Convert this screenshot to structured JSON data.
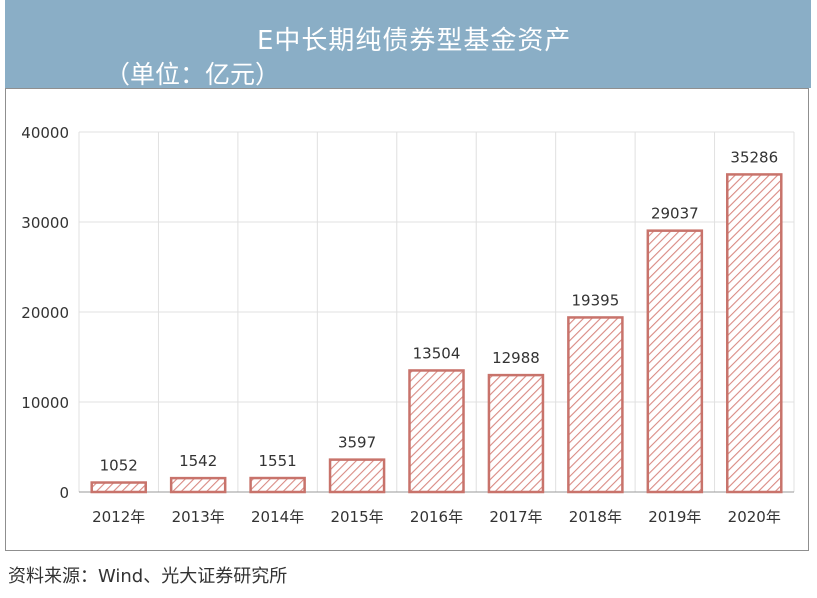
{
  "header": {
    "title": "E中长期纯债券型基金资产",
    "subtitle": "（单位：亿元）"
  },
  "footer": {
    "source": "资料来源：Wind、光大证券研究所"
  },
  "colors": {
    "banner": "#8aaec6",
    "bar_stroke": "#c8736b",
    "bar_hatch": "#d98a83",
    "grid": "#e0e0e0",
    "axis": "#999999",
    "text": "#333333"
  },
  "chart_data": {
    "type": "bar",
    "categories": [
      "2012年",
      "2013年",
      "2014年",
      "2015年",
      "2016年",
      "2017年",
      "2018年",
      "2019年",
      "2020年"
    ],
    "values": [
      1052,
      1542,
      1551,
      3597,
      13504,
      12988,
      19395,
      29037,
      35286
    ],
    "data_labels": [
      "1052",
      "1542",
      "1551",
      "3597",
      "13504",
      "12988",
      "19395",
      "29037",
      "35286"
    ],
    "yticks": [
      0,
      10000,
      20000,
      30000,
      40000
    ],
    "ytick_labels": [
      "0",
      "10000",
      "20000",
      "30000",
      "40000"
    ],
    "ylim": [
      0,
      40000
    ],
    "grid": true,
    "legend": false
  }
}
